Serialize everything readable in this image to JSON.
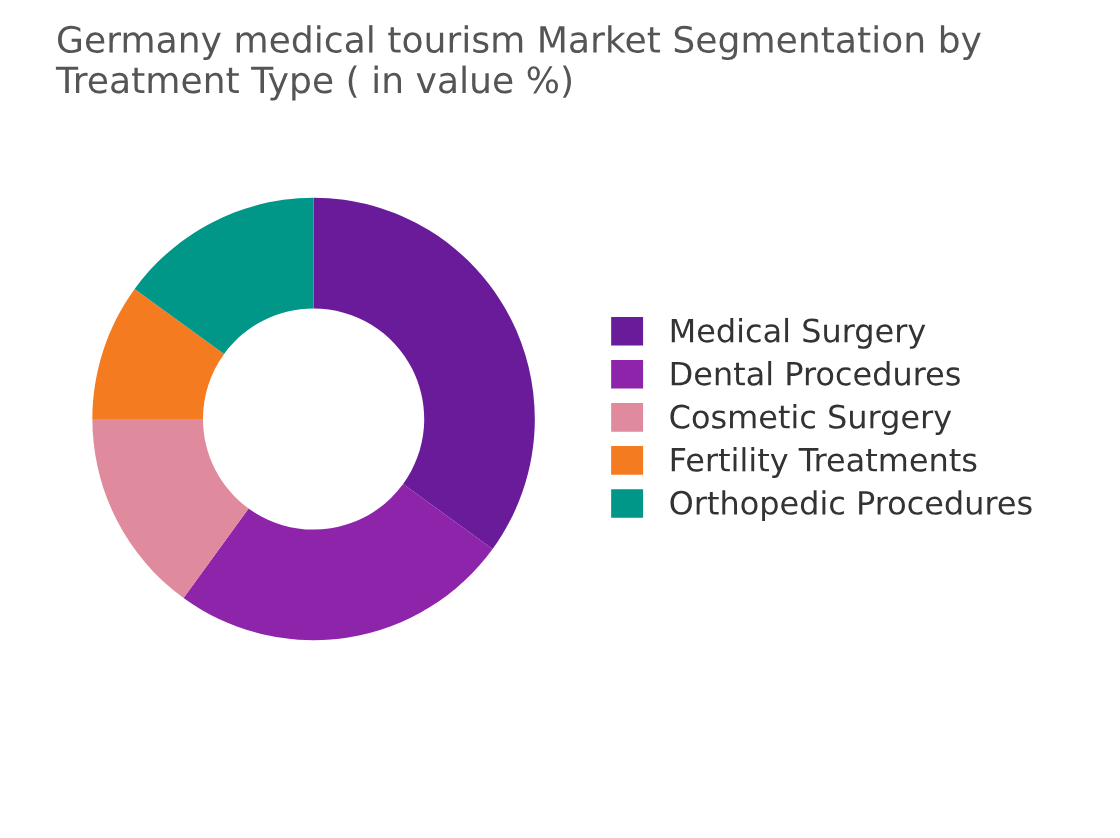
{
  "chart_data": {
    "type": "donut",
    "title": "Germany medical tourism Market Segmentation by Treatment Type ( in value %)",
    "categories": [
      "Medical Surgery",
      "Dental Procedures",
      "Cosmetic Surgery",
      "Fertility Treatments",
      "Orthopedic Procedures"
    ],
    "values": [
      35,
      25,
      15,
      10,
      15
    ],
    "colors": [
      "#6a1b9a",
      "#8e24aa",
      "#e08a9e",
      "#f47b20",
      "#009688"
    ],
    "legend": "right"
  }
}
